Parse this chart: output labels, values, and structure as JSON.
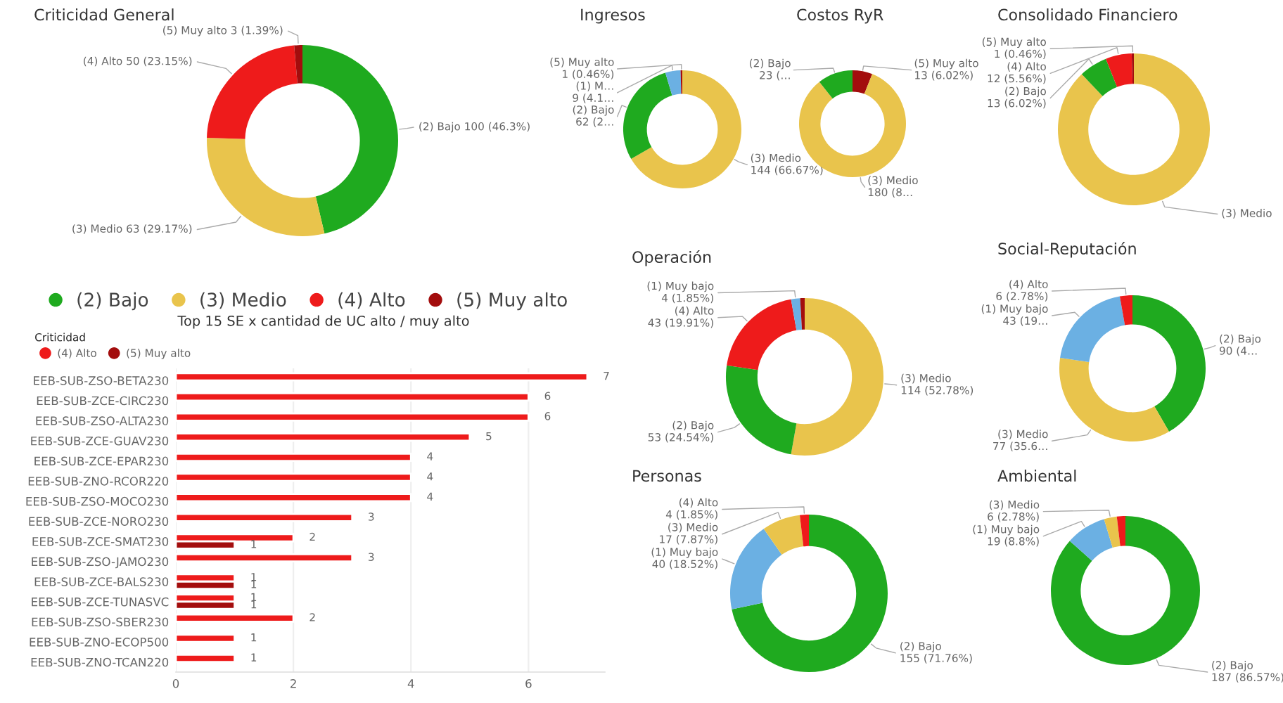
{
  "chart_data": [
    {
      "type": "donut",
      "title": "Criticidad General",
      "categories": [
        "(2) Bajo",
        "(3) Medio",
        "(4) Alto",
        "(5) Muy alto"
      ],
      "values": [
        100,
        63,
        50,
        3
      ],
      "colors": [
        "#1faa1f",
        "#e9c44c",
        "#ee1b1b",
        "#a30d0d"
      ],
      "value_labels": [
        "100 (46.3%)",
        "63 (29.17%)",
        "50 (23.15%)",
        "3 (1.39%)"
      ],
      "legend": "bottom"
    },
    {
      "type": "donut",
      "title": "Ingresos",
      "categories": [
        "(3) Medio",
        "(2) Bajo",
        "(1) M…",
        "(5) Muy alto"
      ],
      "values": [
        144,
        62,
        9,
        1
      ],
      "colors": [
        "#e9c44c",
        "#1faa1f",
        "#6bb0e3",
        "#a30d0d"
      ],
      "value_labels": [
        "144 (66.67%)",
        "62 (2…",
        "9 (4.1…",
        "1 (0.46%)"
      ]
    },
    {
      "type": "donut",
      "title": "Costos RyR",
      "categories": [
        "(5) Muy alto",
        "(3) Medio",
        "(2) Bajo"
      ],
      "values": [
        13,
        180,
        23
      ],
      "colors": [
        "#a30d0d",
        "#e9c44c",
        "#1faa1f"
      ],
      "value_labels": [
        "13 (6.02%)",
        "180 (8…",
        "23 (…"
      ]
    },
    {
      "type": "donut",
      "title": "Consolidado Financiero",
      "categories": [
        "(3) Medio",
        "(2) Bajo",
        "(4) Alto",
        "(5) Muy alto"
      ],
      "values": [
        190,
        13,
        12,
        1
      ],
      "colors": [
        "#e9c44c",
        "#1faa1f",
        "#ee1b1b",
        "#a30d0d"
      ],
      "value_labels": [
        null,
        "13 (6.02%)",
        "12 (5.56%)",
        "1 (0.46%)"
      ]
    },
    {
      "type": "bar",
      "orientation": "horizontal",
      "title": "Top 15 SE x cantidad de UC alto / muy alto",
      "legend_title": "Criticidad",
      "legend": "top left",
      "categories": [
        "EEB-SUB-ZSO-BETA230",
        "EEB-SUB-ZCE-CIRC230",
        "EEB-SUB-ZSO-ALTA230",
        "EEB-SUB-ZCE-GUAV230",
        "EEB-SUB-ZCE-EPAR230",
        "EEB-SUB-ZNO-RCOR220",
        "EEB-SUB-ZSO-MOCO230",
        "EEB-SUB-ZCE-NORO230",
        "EEB-SUB-ZCE-SMAT230",
        "EEB-SUB-ZSO-JAMO230",
        "EEB-SUB-ZCE-BALS230",
        "EEB-SUB-ZCE-TUNASVC",
        "EEB-SUB-ZSO-SBER230",
        "EEB-SUB-ZNO-ECOP500",
        "EEB-SUB-ZNO-TCAN220"
      ],
      "series": [
        {
          "name": "(4) Alto",
          "color": "#ee1b1b",
          "values": [
            7,
            6,
            6,
            5,
            4,
            4,
            4,
            3,
            2,
            3,
            1,
            1,
            2,
            1,
            1
          ]
        },
        {
          "name": "(5) Muy alto",
          "color": "#a30d0d",
          "values": [
            null,
            null,
            null,
            null,
            null,
            null,
            null,
            null,
            1,
            null,
            1,
            1,
            null,
            null,
            null
          ]
        }
      ],
      "xlim": [
        0,
        7.3
      ],
      "xticks": [
        0,
        2,
        4,
        6
      ],
      "grid": "x",
      "data_labels": true
    },
    {
      "type": "donut",
      "title": "Operación",
      "categories": [
        "(3) Medio",
        "(2) Bajo",
        "(4) Alto",
        "(1) Muy bajo",
        null
      ],
      "values": [
        114,
        53,
        43,
        4,
        2
      ],
      "colors": [
        "#e9c44c",
        "#1faa1f",
        "#ee1b1b",
        "#6bb0e3",
        "#a30d0d"
      ],
      "value_labels": [
        "114 (52.78%)",
        "53 (24.54%)",
        "43 (19.91%)",
        "4 (1.85%)",
        null
      ]
    },
    {
      "type": "donut",
      "title": "Social-Reputación",
      "categories": [
        "(2) Bajo",
        "(3) Medio",
        "(1) Muy bajo",
        "(4) Alto"
      ],
      "values": [
        90,
        77,
        43,
        6
      ],
      "colors": [
        "#1faa1f",
        "#e9c44c",
        "#6bb0e3",
        "#ee1b1b"
      ],
      "value_labels": [
        "90 (4…",
        "77 (35.6…",
        "43 (19…",
        "6 (2.78%)"
      ]
    },
    {
      "type": "donut",
      "title": "Personas",
      "categories": [
        "(2) Bajo",
        "(1) Muy bajo",
        "(3) Medio",
        "(4) Alto"
      ],
      "values": [
        155,
        40,
        17,
        4
      ],
      "colors": [
        "#1faa1f",
        "#6bb0e3",
        "#e9c44c",
        "#ee1b1b"
      ],
      "value_labels": [
        "155 (71.76%)",
        "40 (18.52%)",
        "17 (7.87%)",
        "4 (1.85%)"
      ]
    },
    {
      "type": "donut",
      "title": "Ambiental",
      "categories": [
        "(2) Bajo",
        "(1) Muy bajo",
        "(3) Medio",
        null
      ],
      "values": [
        187,
        19,
        6,
        4
      ],
      "colors": [
        "#1faa1f",
        "#6bb0e3",
        "#e9c44c",
        "#ee1b1b"
      ],
      "value_labels": [
        "187 (86.57%)",
        "19 (8.8%)",
        "6 (2.78%)",
        null
      ]
    }
  ]
}
